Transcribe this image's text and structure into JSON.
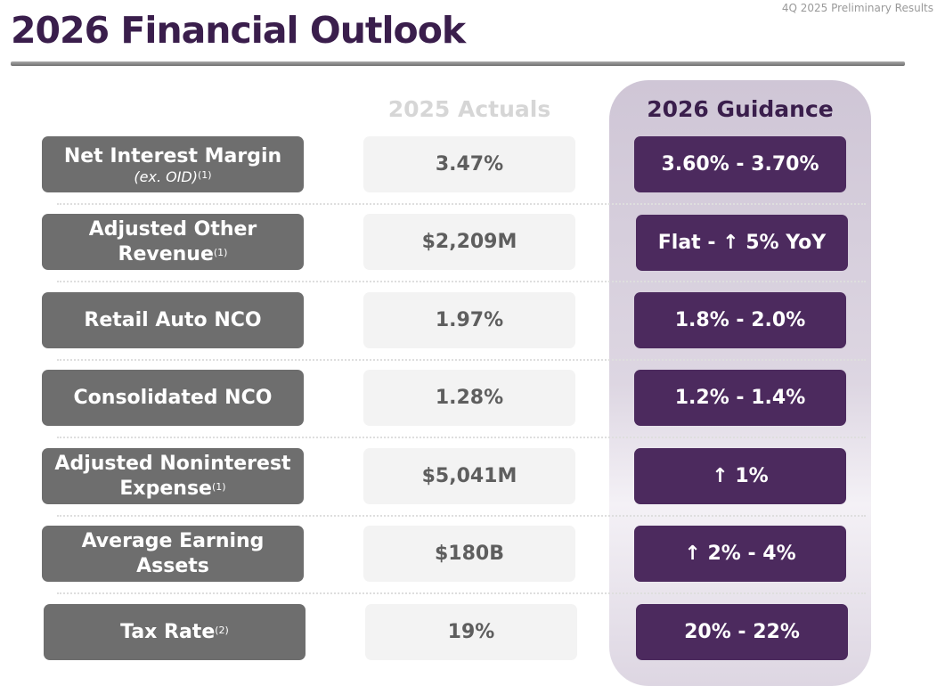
{
  "header": {
    "title": "2026 Financial Outlook",
    "corner_label": "4Q 2025 Preliminary Results"
  },
  "columns": {
    "actuals": "2025 Actuals",
    "guidance": "2026 Guidance"
  },
  "rows": [
    {
      "metric": "Net Interest Margin",
      "metric_sub": "(ex. OID)",
      "footnote": "(1)",
      "actual": "3.47%",
      "guidance": "3.60% - 3.70%"
    },
    {
      "metric_line1": "Adjusted Other",
      "metric_line2": "Revenue",
      "footnote": "(1)",
      "actual": "$2,209M",
      "guidance": "Flat - ↑ 5% YoY"
    },
    {
      "metric": "Retail Auto NCO",
      "actual": "1.97%",
      "guidance": "1.8% - 2.0%"
    },
    {
      "metric": "Consolidated NCO",
      "actual": "1.28%",
      "guidance": "1.2% - 1.4%"
    },
    {
      "metric_line1": "Adjusted Noninterest",
      "metric_line2": "Expense",
      "footnote": "(1)",
      "actual": "$5,041M",
      "guidance": "↑ 1%"
    },
    {
      "metric_line1": "Average Earning",
      "metric_line2": "Assets",
      "actual": "$180B",
      "guidance": "↑ 2% - 4%"
    },
    {
      "metric": "Tax Rate",
      "footnote": "(2)",
      "actual": "19%",
      "guidance": "20% - 22%"
    }
  ],
  "colors": {
    "title": "#3a1e4c",
    "metric_box": "#6e6e6e",
    "actual_box": "#f3f3f3",
    "guidance_box": "#4c2a5e",
    "guidance_panel": "#d8d0de"
  }
}
